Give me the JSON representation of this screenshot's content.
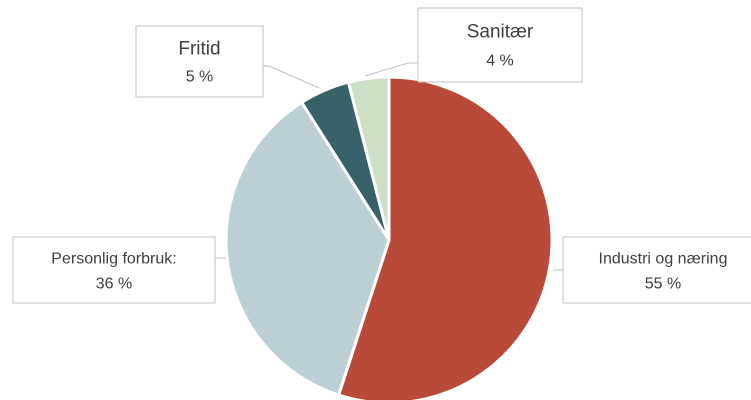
{
  "chart_data": {
    "type": "pie",
    "title": "",
    "start_angle_deg": 0,
    "direction": "clockwise",
    "slices": [
      {
        "name": "Industri og næring",
        "value": 55,
        "value_label": "55 %",
        "color": "#b94a3a"
      },
      {
        "name": "Personlig forbruk:",
        "value": 36,
        "value_label": "36 %",
        "color": "#bccfd4"
      },
      {
        "name": "Fritid",
        "value": 5,
        "value_label": "5 %",
        "color": "#386169"
      },
      {
        "name": "Sanitær",
        "value": 4,
        "value_label": "4 %",
        "color": "#cddfc4"
      }
    ],
    "legend": "none",
    "data_labels": "callouts"
  }
}
